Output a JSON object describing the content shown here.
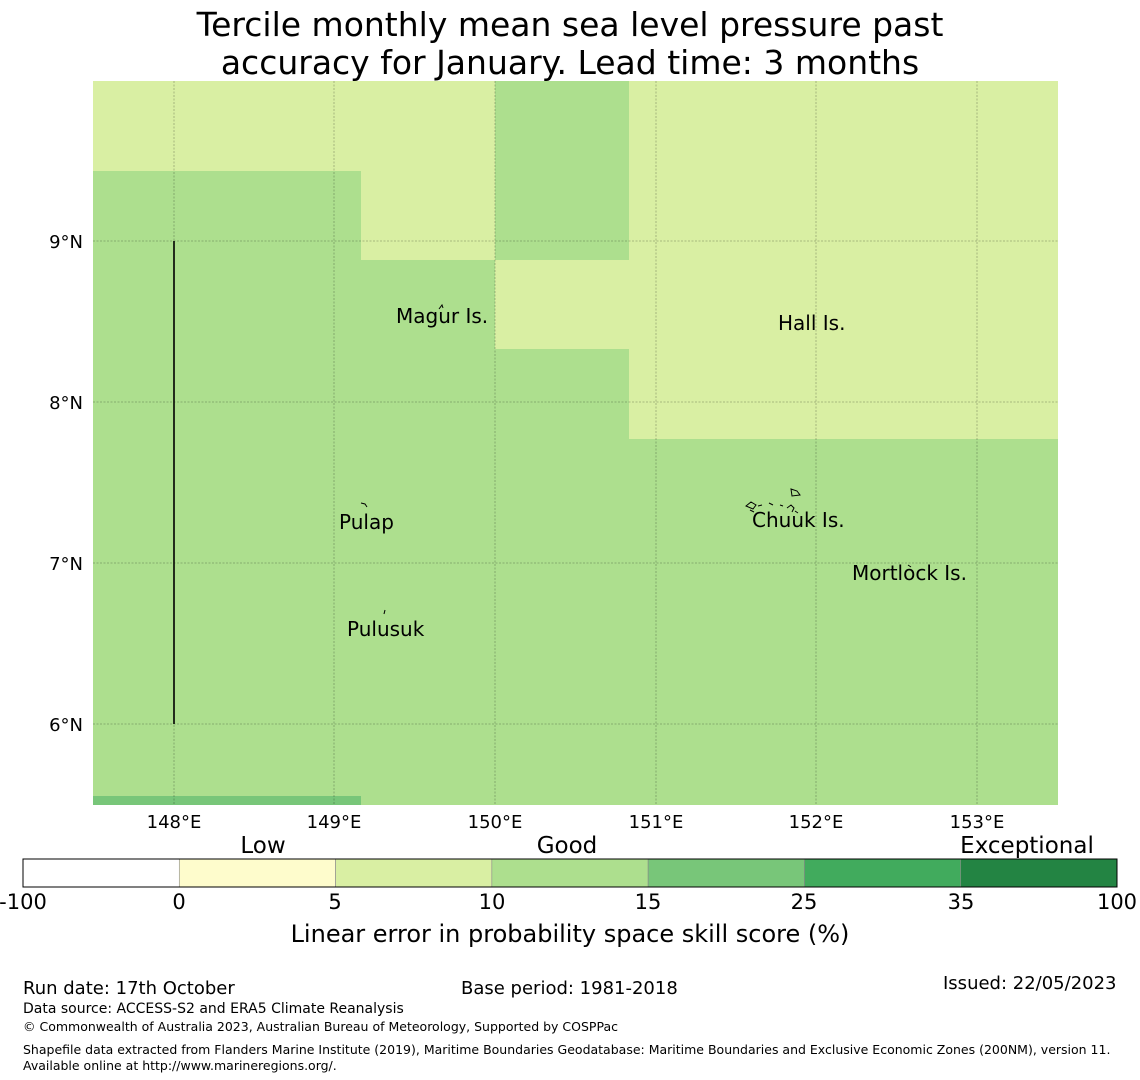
{
  "title": {
    "line1": "Tercile monthly mean sea level pressure past",
    "line2": "accuracy for January. Lead time: 3 months"
  },
  "map": {
    "lat_ticks": [
      "9°N",
      "8°N",
      "7°N",
      "6°N"
    ],
    "lon_ticks": [
      "148°E",
      "149°E",
      "150°E",
      "151°E",
      "152°E",
      "153°E"
    ],
    "place_labels": [
      "Magur Is.",
      "Hall Is.",
      "Pulap",
      "Chuuk Is.",
      "Mortlock Is.",
      "Pulusuk"
    ]
  },
  "legend": {
    "categories": [
      "Low",
      "Good",
      "Exceptional"
    ],
    "tick_labels": [
      "-100",
      "0",
      "5",
      "10",
      "15",
      "25",
      "35",
      "100"
    ],
    "colors": [
      "#ffffff",
      "#fefccc",
      "#d9efa3",
      "#addf8e",
      "#78c679",
      "#41ab5d",
      "#238443"
    ],
    "axis_label": "Linear error in probability space skill score (%)"
  },
  "footer": {
    "run_date": "Run date: 17th October",
    "base_period": "Base period: 1981-2018",
    "issued": "Issued: 22/05/2023",
    "data_source": "Data source: ACCESS-S2 and ERA5 Climate Reanalysis",
    "copyright": "© Commonwealth of Australia 2023, Australian Bureau of Meteorology, Supported by COSPPac",
    "shapefile": "Shapefile data extracted from Flanders Marine Institute (2019), Maritime Boundaries Geodatabase: Maritime Boundaries and Exclusive Economic Zones (200NM), version 11. Available online at http://www.marineregions.org/."
  }
}
